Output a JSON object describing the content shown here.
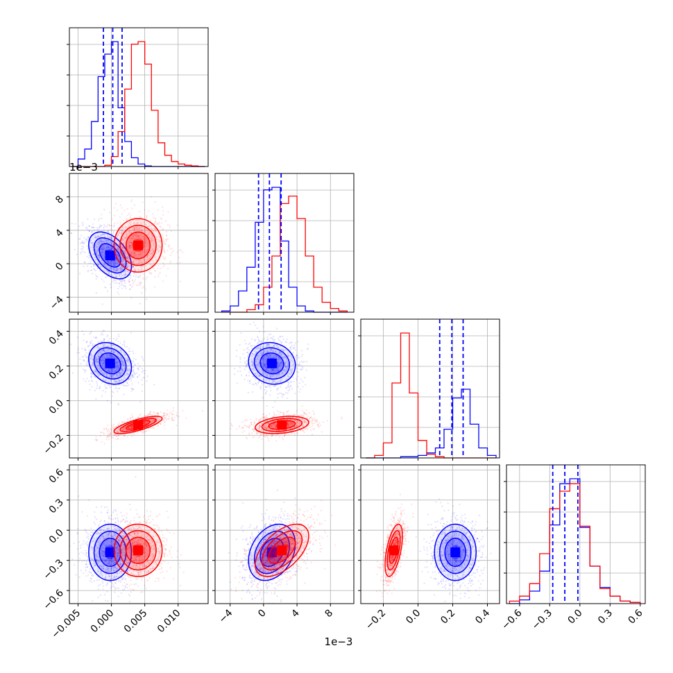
{
  "figure": {
    "x_offset_labels": [
      "",
      "1e−3",
      "",
      ""
    ],
    "y_offset_labels": [
      "",
      "1e−3",
      "",
      ""
    ]
  },
  "colors": {
    "blue": "#0000ff",
    "red": "#ff0000",
    "grid": "#b0b0b0",
    "axes": "#000000"
  },
  "chart_data": {
    "type": "corner",
    "parameters": 4,
    "series": [
      {
        "color": "#0000ff"
      },
      {
        "color": "#ff0000"
      }
    ],
    "axes_ranges": [
      [
        -0.0063,
        0.0145
      ],
      [
        -5.8,
        10.8
      ],
      [
        -0.33,
        0.47
      ],
      [
        -0.73,
        0.65
      ]
    ],
    "ticks": [
      {
        "values": [
          -0.005,
          0.0,
          0.005,
          0.01
        ],
        "labels": [
          "−0.005",
          "0.000",
          "0.005",
          "0.010"
        ]
      },
      {
        "values": [
          -4,
          0,
          4,
          8
        ],
        "labels": [
          "−4",
          "0",
          "4",
          "8"
        ]
      },
      {
        "values": [
          -0.2,
          0.0,
          0.2,
          0.4
        ],
        "labels": [
          "−0.2",
          "0.0",
          "0.2",
          "0.4"
        ]
      },
      {
        "values": [
          -0.6,
          -0.3,
          0.0,
          0.3,
          0.6
        ],
        "labels": [
          "−0.6",
          "−0.3",
          "0.0",
          "0.3",
          "0.6"
        ]
      }
    ],
    "grid": true,
    "quantiles_blue": [
      [
        -0.0012,
        0.0002,
        0.0016
      ],
      [
        -0.6,
        0.7,
        2.1
      ],
      [
        0.125,
        0.195,
        0.26
      ],
      [
        -0.27,
        -0.15,
        -0.02
      ]
    ],
    "marginals": [
      {
        "edges": [
          -0.006,
          -0.005,
          -0.004,
          -0.003,
          -0.002,
          -0.001,
          0.0,
          0.001,
          0.002,
          0.003,
          0.004,
          0.005,
          0.006,
          0.007,
          0.008,
          0.009,
          0.01,
          0.011,
          0.012,
          0.013,
          0.014
        ],
        "blue": [
          0.0,
          0.06,
          0.14,
          0.36,
          0.72,
          0.9,
          1.0,
          0.47,
          0.2,
          0.07,
          0.02,
          0.005,
          0,
          0,
          0,
          0,
          0,
          0,
          0,
          0
        ],
        "red": [
          0.0,
          0.0,
          0.0,
          0.0,
          0.0,
          0.01,
          0.08,
          0.28,
          0.62,
          0.98,
          1.0,
          0.82,
          0.45,
          0.19,
          0.09,
          0.04,
          0.02,
          0.01,
          0.005,
          0.0
        ]
      },
      {
        "edges": [
          -5,
          -4,
          -3,
          -2,
          -1,
          0,
          1,
          2,
          3,
          4,
          5,
          6,
          7,
          8,
          9,
          10
        ],
        "blue": [
          0.01,
          0.05,
          0.17,
          0.36,
          0.72,
          0.98,
          1.0,
          0.57,
          0.2,
          0.05,
          0.01,
          0.0,
          0.0,
          0.0,
          0.0
        ],
        "red": [
          0.0,
          0.0,
          0.0,
          0.02,
          0.06,
          0.2,
          0.45,
          0.87,
          0.93,
          0.75,
          0.45,
          0.2,
          0.08,
          0.03,
          0.01
        ]
      },
      {
        "edges": [
          -0.3,
          -0.25,
          -0.2,
          -0.15,
          -0.1,
          -0.05,
          0.0,
          0.05,
          0.1,
          0.15,
          0.2,
          0.25,
          0.3,
          0.35,
          0.4,
          0.45
        ],
        "blue": [
          0.0,
          0.0,
          0.0,
          0.0,
          0.01,
          0.01,
          0.02,
          0.04,
          0.08,
          0.23,
          0.48,
          0.55,
          0.27,
          0.08,
          0.02
        ],
        "red": [
          0.0,
          0.02,
          0.12,
          0.6,
          1.0,
          0.52,
          0.14,
          0.03,
          0.01,
          0.0,
          0.0,
          0.0,
          0.0,
          0.0,
          0.0
        ]
      },
      {
        "edges": [
          -0.7,
          -0.6,
          -0.5,
          -0.4,
          -0.3,
          -0.2,
          -0.1,
          0.0,
          0.1,
          0.2,
          0.3,
          0.4,
          0.5,
          0.6
        ],
        "blue": [
          0.0,
          0.03,
          0.1,
          0.26,
          0.63,
          0.96,
          1.0,
          0.61,
          0.3,
          0.13,
          0.06,
          0.02,
          0.01
        ],
        "red": [
          0.02,
          0.06,
          0.16,
          0.4,
          0.76,
          0.9,
          0.96,
          0.62,
          0.3,
          0.12,
          0.06,
          0.02,
          0.01
        ]
      }
    ],
    "joint_modes": {
      "blue": [
        -0.0002,
        1.0,
        0.215,
        -0.22
      ],
      "red": [
        0.004,
        2.2,
        -0.14,
        -0.2
      ]
    },
    "joint_spread": {
      "blue": [
        0.0016,
        1.4,
        0.06,
        0.14
      ],
      "red": [
        0.0018,
        1.6,
        0.025,
        0.13
      ]
    },
    "correlations": {
      "0-1": {
        "blue": -0.45,
        "red": 0.0
      },
      "0-2": {
        "blue": -0.2,
        "red": 0.75
      },
      "0-3": {
        "blue": 0.0,
        "red": 0.0
      },
      "1-2": {
        "blue": -0.1,
        "red": 0.3
      },
      "1-3": {
        "blue": 0.3,
        "red": 0.55
      },
      "2-3": {
        "blue": 0.0,
        "red": 0.55
      }
    }
  }
}
